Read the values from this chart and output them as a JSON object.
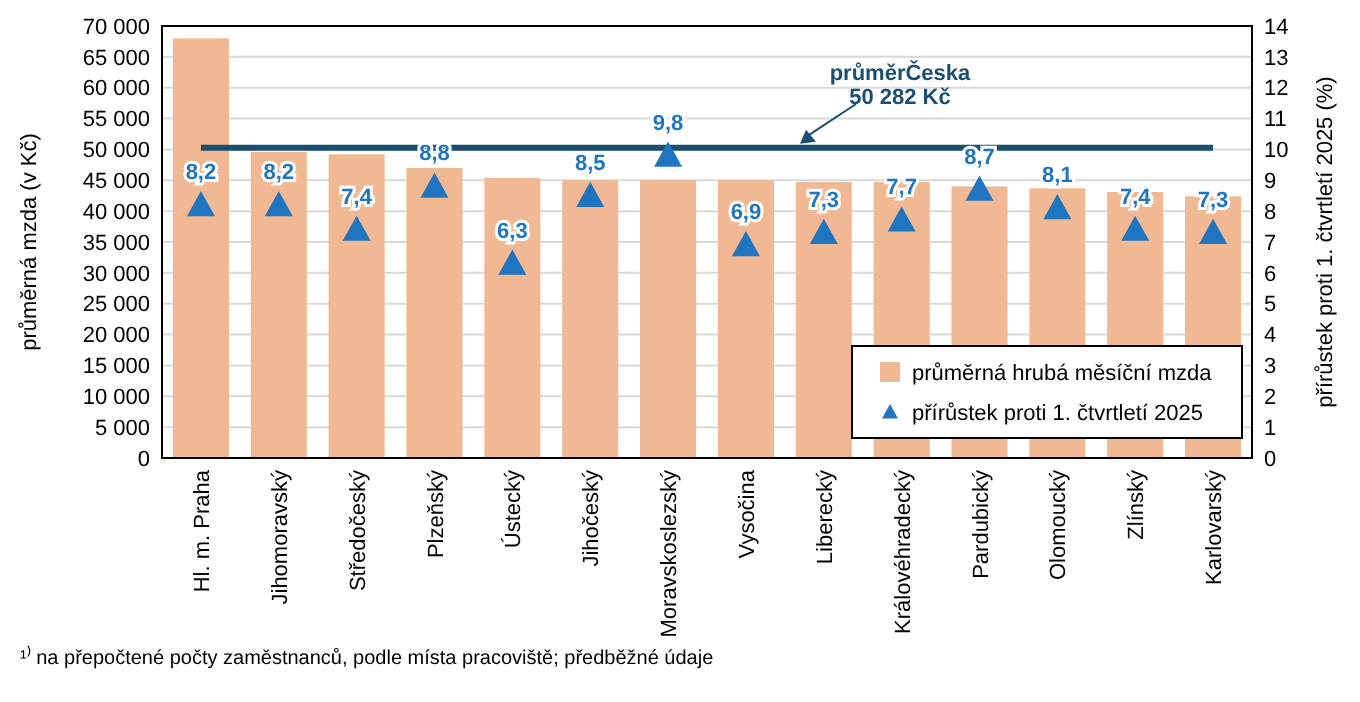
{
  "chart_data": {
    "type": "bar",
    "categories": [
      "Hl. m. Praha",
      "Jihomoravský",
      "Středočeský",
      "Plzeňský",
      "Ústecký",
      "Jihočeský",
      "Moravskoslezský",
      "Vysočina",
      "Liberecký",
      "Královéhradecký",
      "Pardubický",
      "Olomoucký",
      "Zlínský",
      "Karlovarský"
    ],
    "series": [
      {
        "name": "průměrná hrubá měsíční mzda",
        "color": "#f0b893",
        "values": [
          68000,
          49600,
          49200,
          47000,
          45400,
          45000,
          45000,
          45000,
          44700,
          44700,
          44000,
          43700,
          43100,
          42400
        ]
      },
      {
        "name": "přírůstek proti 1. čtvrtletí 2025",
        "type": "scatter",
        "axis": "y2",
        "color": "#1f75c0",
        "values": [
          8.2,
          8.2,
          7.4,
          8.8,
          6.3,
          8.5,
          9.8,
          6.9,
          7.3,
          7.7,
          8.7,
          8.1,
          7.4,
          7.3
        ],
        "value_labels": [
          "8,2",
          "8,2",
          "7,4",
          "8,8",
          "6,3",
          "8,5",
          "9,8",
          "6,9",
          "7,3",
          "7,7",
          "8,7",
          "8,1",
          "7,4",
          "7,3"
        ]
      }
    ],
    "ylabel": "průměrná mzda (v Kč)",
    "y2label": "přírůstek proti 1. čtvrtletí 2025 (%)",
    "ylim": [
      0,
      70000
    ],
    "yticks": [
      {
        "value": 0,
        "label": "0"
      },
      {
        "value": 5000,
        "label": "5 000"
      },
      {
        "value": 10000,
        "label": "10 000"
      },
      {
        "value": 15000,
        "label": "15 000"
      },
      {
        "value": 20000,
        "label": "20 000"
      },
      {
        "value": 25000,
        "label": "25 000"
      },
      {
        "value": 30000,
        "label": "30 000"
      },
      {
        "value": 35000,
        "label": "35 000"
      },
      {
        "value": 40000,
        "label": "40 000"
      },
      {
        "value": 45000,
        "label": "45 000"
      },
      {
        "value": 50000,
        "label": "50 000"
      },
      {
        "value": 55000,
        "label": "55 000"
      },
      {
        "value": 60000,
        "label": "60 000"
      },
      {
        "value": 65000,
        "label": "65 000"
      },
      {
        "value": 70000,
        "label": "70 000"
      }
    ],
    "y2lim": [
      0,
      14
    ],
    "y2ticks": [
      0,
      1,
      2,
      3,
      4,
      5,
      6,
      7,
      8,
      9,
      10,
      11,
      12,
      13,
      14
    ],
    "ref_lines": [
      {
        "axis": "y",
        "value": 50282,
        "label": "průměrČeska\n50 282 Kč",
        "color": "#1b4f72"
      }
    ],
    "grid": "y",
    "legend": "bottom right",
    "marker": "triangle",
    "annotations": [
      "¹⁾ na přepočtené počty zaměstnanců, podle místa pracoviště; předběžné údaje"
    ]
  }
}
